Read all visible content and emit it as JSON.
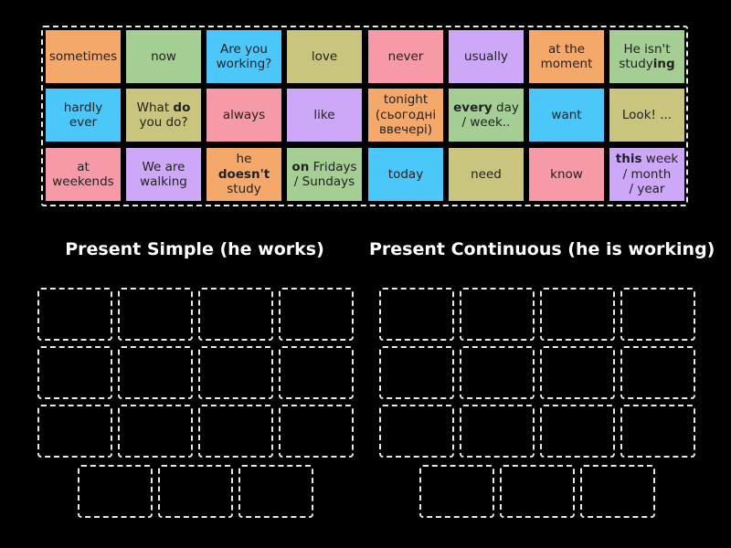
{
  "colors": {
    "background": "#000000",
    "orange": "#F4A96B",
    "green": "#A5CE94",
    "blue": "#4CC7F9",
    "olive": "#C9C47E",
    "pink": "#F69AA8",
    "lavender": "#CDA8F8",
    "slot_border": "#E8E8E8",
    "heading_text": "#FFFFFF"
  },
  "tiles": [
    {
      "row": 0,
      "col": 0,
      "color": "orange",
      "lines": [
        "sometimes"
      ]
    },
    {
      "row": 0,
      "col": 1,
      "color": "green",
      "lines": [
        "now"
      ]
    },
    {
      "row": 0,
      "col": 2,
      "color": "blue",
      "lines": [
        "Are you",
        "working?"
      ]
    },
    {
      "row": 0,
      "col": 3,
      "color": "olive",
      "lines": [
        "love"
      ]
    },
    {
      "row": 0,
      "col": 4,
      "color": "pink",
      "lines": [
        "never"
      ]
    },
    {
      "row": 0,
      "col": 5,
      "color": "lavender",
      "lines": [
        "usually"
      ]
    },
    {
      "row": 0,
      "col": 6,
      "color": "orange",
      "lines": [
        "at the",
        "moment"
      ]
    },
    {
      "row": 0,
      "col": 7,
      "color": "green",
      "lines": [
        "He isn't",
        "study**ing**"
      ]
    },
    {
      "row": 1,
      "col": 0,
      "color": "blue",
      "lines": [
        "hardly",
        "ever"
      ]
    },
    {
      "row": 1,
      "col": 1,
      "color": "olive",
      "lines": [
        "What **do**",
        "you do?"
      ]
    },
    {
      "row": 1,
      "col": 2,
      "color": "pink",
      "lines": [
        "always"
      ]
    },
    {
      "row": 1,
      "col": 3,
      "color": "lavender",
      "lines": [
        "like"
      ]
    },
    {
      "row": 1,
      "col": 4,
      "color": "orange",
      "lines": [
        "tonight",
        "(сьогодні",
        "ввечері)"
      ]
    },
    {
      "row": 1,
      "col": 5,
      "color": "green",
      "lines": [
        "**every** day",
        "/ week.."
      ]
    },
    {
      "row": 1,
      "col": 6,
      "color": "blue",
      "lines": [
        "want"
      ]
    },
    {
      "row": 1,
      "col": 7,
      "color": "olive",
      "lines": [
        "Look! ..."
      ]
    },
    {
      "row": 2,
      "col": 0,
      "color": "pink",
      "lines": [
        "at",
        "weekends"
      ]
    },
    {
      "row": 2,
      "col": 1,
      "color": "lavender",
      "lines": [
        "We are",
        "walking"
      ]
    },
    {
      "row": 2,
      "col": 2,
      "color": "orange",
      "lines": [
        "he",
        "**doesn't**",
        "study"
      ]
    },
    {
      "row": 2,
      "col": 3,
      "color": "green",
      "lines": [
        "**on** Fridays",
        "/ Sundays"
      ]
    },
    {
      "row": 2,
      "col": 4,
      "color": "blue",
      "lines": [
        "today"
      ]
    },
    {
      "row": 2,
      "col": 5,
      "color": "olive",
      "lines": [
        "need"
      ]
    },
    {
      "row": 2,
      "col": 6,
      "color": "pink",
      "lines": [
        "know"
      ]
    },
    {
      "row": 2,
      "col": 7,
      "color": "lavender",
      "lines": [
        "**this** week",
        "/ month",
        "/ year"
      ]
    }
  ],
  "groups": [
    {
      "id": "present-simple",
      "title": "Present Simple (he works)",
      "slots": 15
    },
    {
      "id": "present-continuous",
      "title": "Present Continuous (he is working)",
      "slots": 15
    }
  ]
}
